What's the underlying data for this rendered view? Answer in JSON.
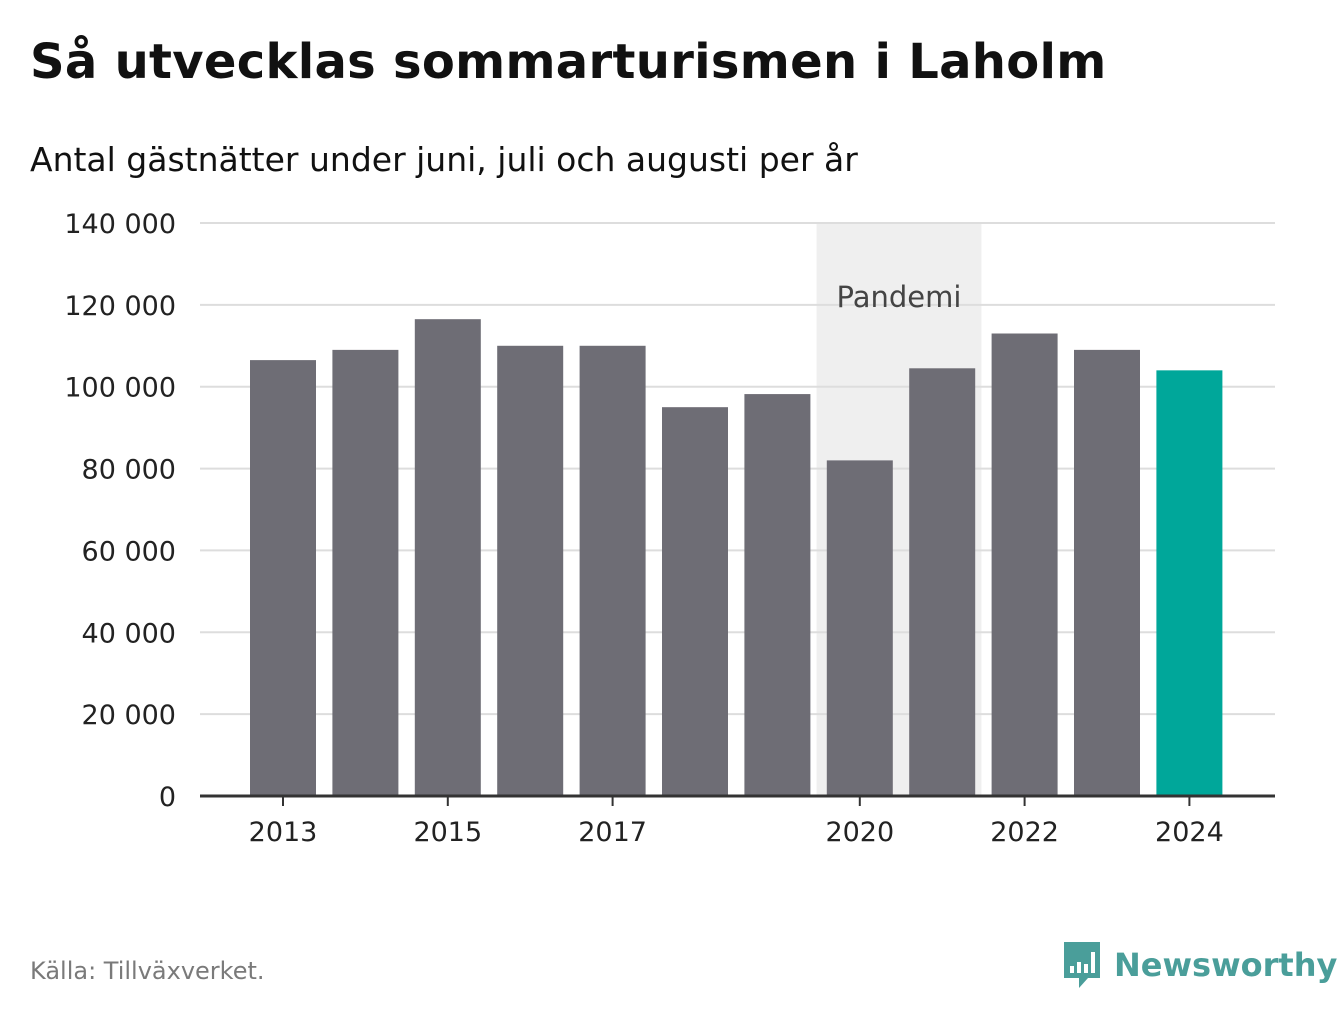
{
  "title": "Så utvecklas sommarturismen i Laholm",
  "subtitle": "Antal gästnätter under juni, juli och augusti per år",
  "source": "Källa: Tillväxverket.",
  "brand": "Newsworthy",
  "colors": {
    "bar": "#6e6d75",
    "highlight": "#00a79a",
    "shade": "#efefef",
    "grid": "#dddddd",
    "axis": "#333333",
    "brand": "#4a9e9a"
  },
  "chart_data": {
    "type": "bar",
    "categories": [
      "2013",
      "2014",
      "2015",
      "2016",
      "2017",
      "2018",
      "2019",
      "2020",
      "2021",
      "2022",
      "2023",
      "2024"
    ],
    "values": [
      106500,
      109000,
      116500,
      110000,
      110000,
      95000,
      98200,
      82000,
      104500,
      113000,
      109000,
      104000
    ],
    "highlight_category": "2024",
    "x_tick_labels": [
      "2013",
      "2015",
      "2017",
      "2020",
      "2022",
      "2024"
    ],
    "y_ticks": [
      0,
      20000,
      40000,
      60000,
      80000,
      100000,
      120000,
      140000
    ],
    "y_tick_labels": [
      "0",
      "20 000",
      "40 000",
      "60 000",
      "80 000",
      "100 000",
      "120 000",
      "140 000"
    ],
    "ylim": [
      0,
      140000
    ],
    "annotation": {
      "label": "Pandemi",
      "from": "2020",
      "to": "2021"
    },
    "grid": true,
    "xlabel": "",
    "ylabel": ""
  }
}
